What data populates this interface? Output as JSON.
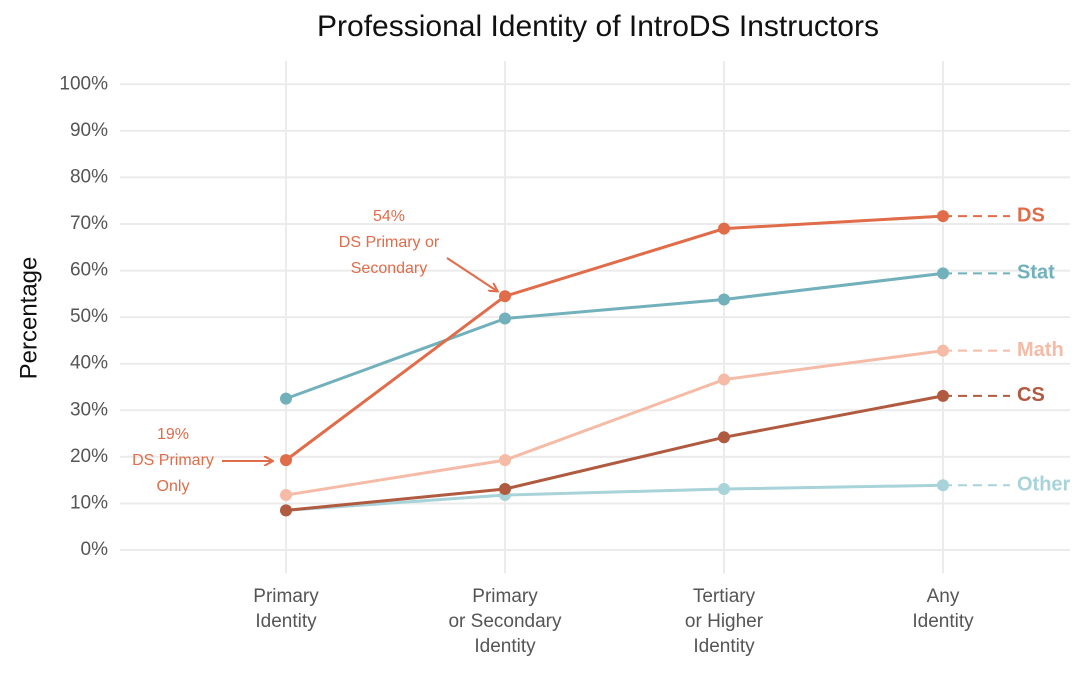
{
  "chart_data": {
    "type": "line",
    "title": "Professional Identity of IntroDS Instructors",
    "y_label": "Percentage",
    "categories": [
      "Primary\nIdentity",
      "Primary\nor Secondary\nIdentity",
      "Tertiary\nor Higher\nIdentity",
      "Any\nIdentity"
    ],
    "series": [
      {
        "name": "DS",
        "color": "#e06c4a",
        "values": [
          19.3,
          54.5,
          69,
          71.7
        ]
      },
      {
        "name": "Stat",
        "color": "#72b1bb",
        "values": [
          32.5,
          49.7,
          53.8,
          59.4
        ]
      },
      {
        "name": "Math",
        "color": "#f5bba6",
        "values": [
          11.8,
          19.3,
          36.6,
          42.8
        ]
      },
      {
        "name": "CS",
        "color": "#b05a40",
        "values": [
          8.5,
          13.1,
          24.2,
          33.1
        ]
      },
      {
        "name": "Other",
        "color": "#a8d3d9",
        "values": [
          8.5,
          11.8,
          13.1,
          13.9
        ]
      }
    ],
    "ylim": [
      -5,
      105
    ],
    "yticks": [
      {
        "value": 0,
        "label": "0%"
      },
      {
        "value": 10,
        "label": "10%"
      },
      {
        "value": 20,
        "label": "20%"
      },
      {
        "value": 30,
        "label": "30%"
      },
      {
        "value": 40,
        "label": "40%"
      },
      {
        "value": 50,
        "label": "50%"
      },
      {
        "value": 60,
        "label": "60%"
      },
      {
        "value": 70,
        "label": "70%"
      },
      {
        "value": 80,
        "label": "80%"
      },
      {
        "value": 90,
        "label": "90%"
      },
      {
        "value": 100,
        "label": "100%"
      }
    ],
    "grid": true,
    "annotations": [
      {
        "lines": [
          "54%",
          "DS Primary or",
          "Secondary"
        ]
      },
      {
        "lines": [
          "19%",
          "DS Primary",
          "Only"
        ]
      }
    ]
  }
}
